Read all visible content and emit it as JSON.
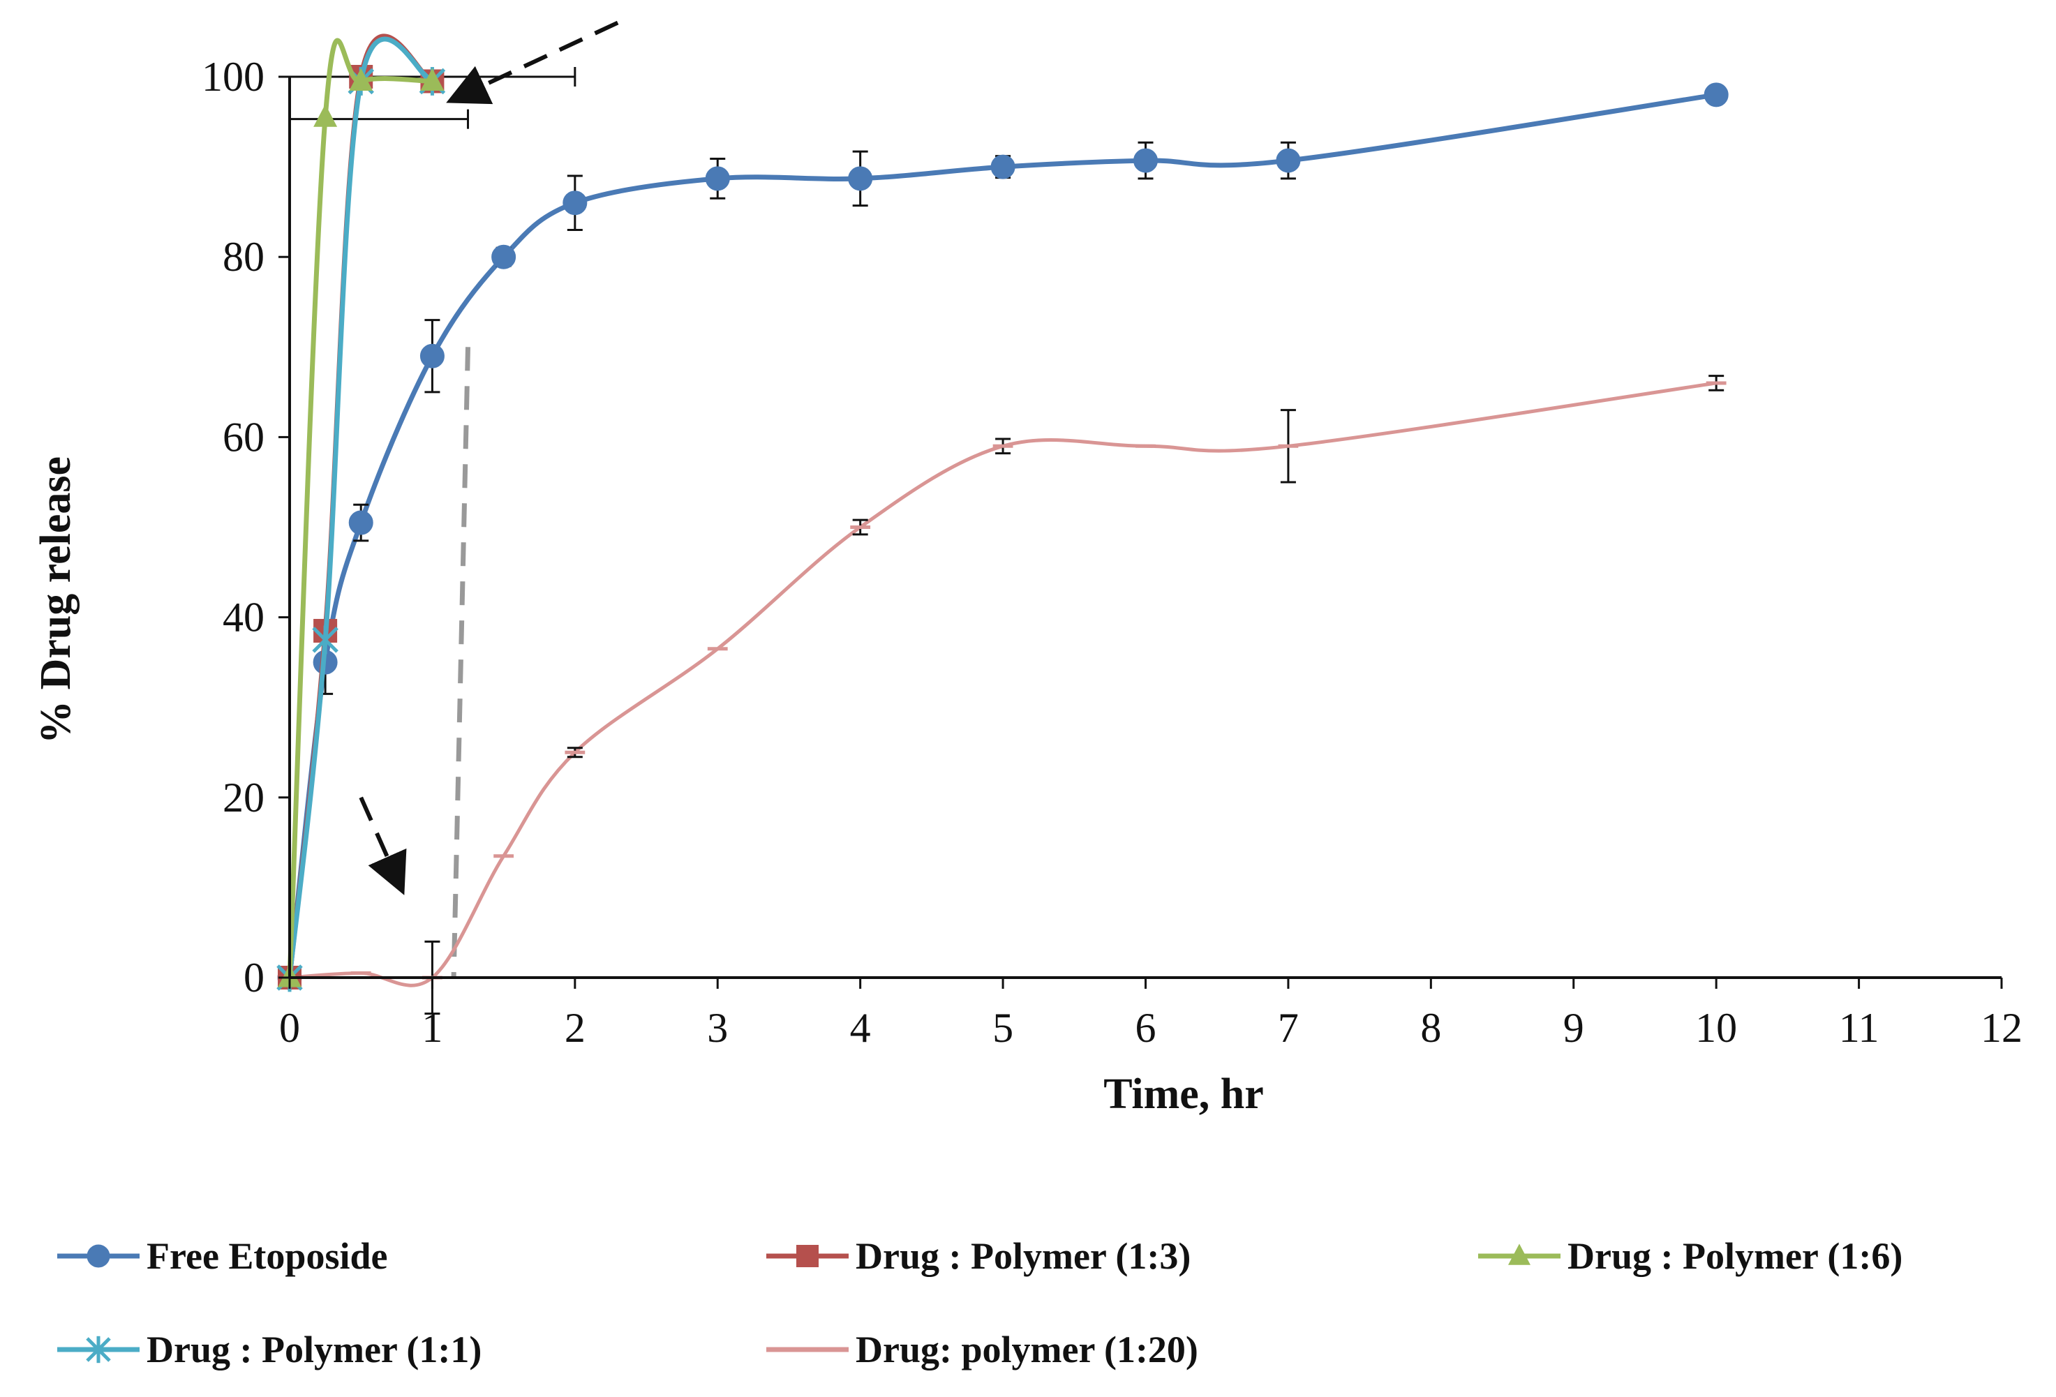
{
  "chart_data": {
    "type": "line",
    "title": "",
    "xlabel": "Time, hr",
    "ylabel": "% Drug release",
    "xlim": [
      0,
      12
    ],
    "ylim": [
      0,
      100
    ],
    "xticks": [
      0,
      1,
      2,
      3,
      4,
      5,
      6,
      7,
      8,
      9,
      10,
      11,
      12
    ],
    "yticks": [
      0,
      20,
      40,
      60,
      80,
      100
    ],
    "grid": false,
    "legend_position": "bottom",
    "series": [
      {
        "name": "Free Etoposide",
        "color": "#4a7ab5",
        "marker": "circle",
        "x": [
          0,
          0.25,
          0.5,
          1,
          1.5,
          2,
          3,
          4,
          5,
          6,
          7,
          10
        ],
        "y": [
          0,
          35,
          50.5,
          69,
          80,
          86,
          88.7,
          88.7,
          90,
          90.7,
          90.7,
          98
        ],
        "error": [
          0,
          3.5,
          2,
          4,
          1,
          3,
          2.2,
          3,
          1.2,
          2,
          2,
          0
        ]
      },
      {
        "name": "Drug : Polymer (1:3)",
        "color": "#b5504d",
        "marker": "square",
        "x": [
          0,
          0.25,
          0.5,
          1
        ],
        "y": [
          0,
          38.5,
          100,
          99.5
        ],
        "error": [
          0,
          0,
          0,
          0
        ]
      },
      {
        "name": "Drug : Polymer (1:6)",
        "color": "#9bbb59",
        "marker": "triangle",
        "x": [
          0,
          0.25,
          0.5,
          1
        ],
        "y": [
          0,
          95.5,
          99.5,
          99.5
        ],
        "error": [
          0,
          0,
          0,
          0
        ]
      },
      {
        "name": "Drug : Polymer (1:1)",
        "color": "#4bacc6",
        "marker": "star",
        "x": [
          0,
          0.25,
          0.5,
          1
        ],
        "y": [
          0,
          37.5,
          99.5,
          99.5
        ],
        "error": [
          0,
          0,
          0,
          0
        ]
      },
      {
        "name": "Drug: polymer (1:20)",
        "color": "#d99594",
        "marker": "dash",
        "x": [
          0,
          0.5,
          1,
          1.5,
          2,
          3,
          4,
          5,
          6,
          7,
          10
        ],
        "y": [
          0,
          0.5,
          0,
          13.5,
          25,
          36.5,
          50,
          59,
          59,
          59,
          66
        ],
        "error": [
          0,
          0,
          4,
          0,
          0.5,
          0,
          0.8,
          0.8,
          0,
          4,
          0.8
        ]
      }
    ],
    "horizontal_error_bars": [
      {
        "y": 100,
        "x_from": 0,
        "x_to": 2
      },
      {
        "y": 95.3,
        "x_from": 0,
        "x_to": 1.25
      }
    ],
    "annotations": {
      "vertical_dashed_line": {
        "x_top": 1.25,
        "y_top": 70,
        "x_bottom": 1.15,
        "y_bottom": 0,
        "color": "#999999"
      },
      "arrows": [
        {
          "from": [
            2.3,
            106
          ],
          "to": [
            1.15,
            97.5
          ],
          "style": "dashed"
        },
        {
          "from": [
            0.5,
            20
          ],
          "to": [
            0.78,
            10
          ],
          "style": "dashed"
        }
      ]
    }
  }
}
